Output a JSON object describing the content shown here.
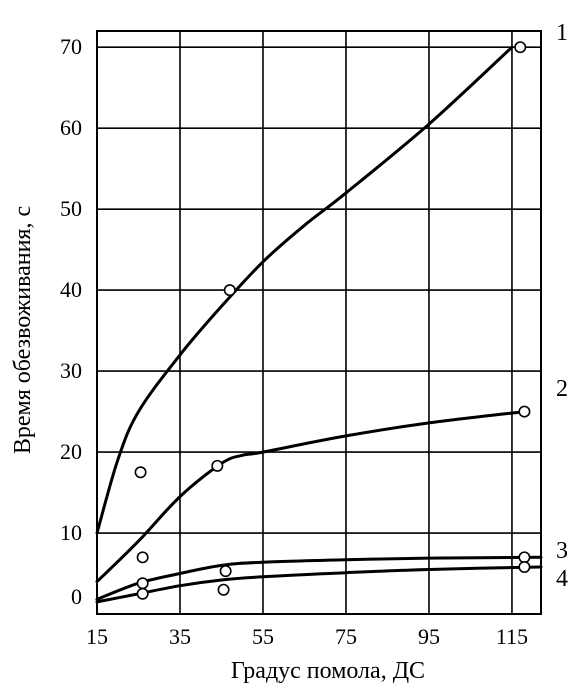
{
  "chart_data": {
    "type": "line",
    "title": "",
    "xlabel": "Градус помола, ДС",
    "ylabel": "Время обезвоживания, с",
    "xlim": [
      15,
      122
    ],
    "ylim": [
      0,
      72
    ],
    "x_ticks": [
      15,
      35,
      55,
      75,
      95,
      115
    ],
    "y_ticks": [
      0,
      10,
      20,
      30,
      40,
      50,
      60,
      70
    ],
    "grid": true,
    "series": [
      {
        "name": "1",
        "curve": [
          [
            15,
            10
          ],
          [
            20,
            19
          ],
          [
            25,
            25
          ],
          [
            35,
            32
          ],
          [
            45,
            38
          ],
          [
            55,
            43.5
          ],
          [
            65,
            48
          ],
          [
            75,
            52
          ],
          [
            95,
            60.5
          ],
          [
            115,
            70
          ]
        ],
        "points": [
          [
            25.5,
            17.5
          ],
          [
            47,
            40
          ],
          [
            117,
            70
          ]
        ]
      },
      {
        "name": "2",
        "curve": [
          [
            15,
            4
          ],
          [
            25,
            9
          ],
          [
            35,
            14.5
          ],
          [
            45,
            18.6
          ],
          [
            50,
            19.6
          ],
          [
            55,
            20
          ],
          [
            75,
            22
          ],
          [
            95,
            23.6
          ],
          [
            118,
            25
          ]
        ],
        "points": [
          [
            26,
            7
          ],
          [
            44,
            18.3
          ],
          [
            118,
            25
          ]
        ]
      },
      {
        "name": "3",
        "curve": [
          [
            15,
            1.8
          ],
          [
            25,
            3.8
          ],
          [
            35,
            5
          ],
          [
            45,
            6
          ],
          [
            55,
            6.4
          ],
          [
            75,
            6.7
          ],
          [
            95,
            6.9
          ],
          [
            122,
            7
          ]
        ],
        "points": [
          [
            26,
            3.8
          ],
          [
            46,
            5.3
          ],
          [
            118,
            7
          ]
        ]
      },
      {
        "name": "4",
        "curve": [
          [
            15,
            1.5
          ],
          [
            25,
            2.5
          ],
          [
            35,
            3.5
          ],
          [
            45,
            4.2
          ],
          [
            55,
            4.6
          ],
          [
            75,
            5.1
          ],
          [
            95,
            5.5
          ],
          [
            122,
            5.8
          ]
        ],
        "points": [
          [
            26,
            2.5
          ],
          [
            45.5,
            3
          ],
          [
            118,
            5.8
          ]
        ]
      }
    ]
  }
}
